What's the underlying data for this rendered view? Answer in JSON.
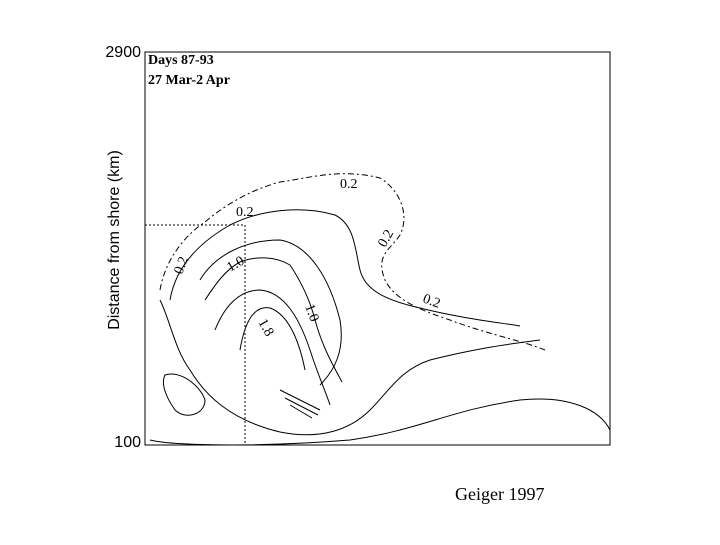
{
  "figure": {
    "y_axis_label": "Distance from shore (km)",
    "y_tick_top": "2900",
    "y_tick_bottom": "100",
    "title_lines": [
      "Days 87-93",
      "27 Mar-2 Apr"
    ],
    "contour_labels": [
      "0.2",
      "0.2",
      "0.2",
      "0.2",
      "0.2",
      "1.0",
      "1.0",
      "1.8"
    ],
    "caption": "Geiger 1997"
  }
}
